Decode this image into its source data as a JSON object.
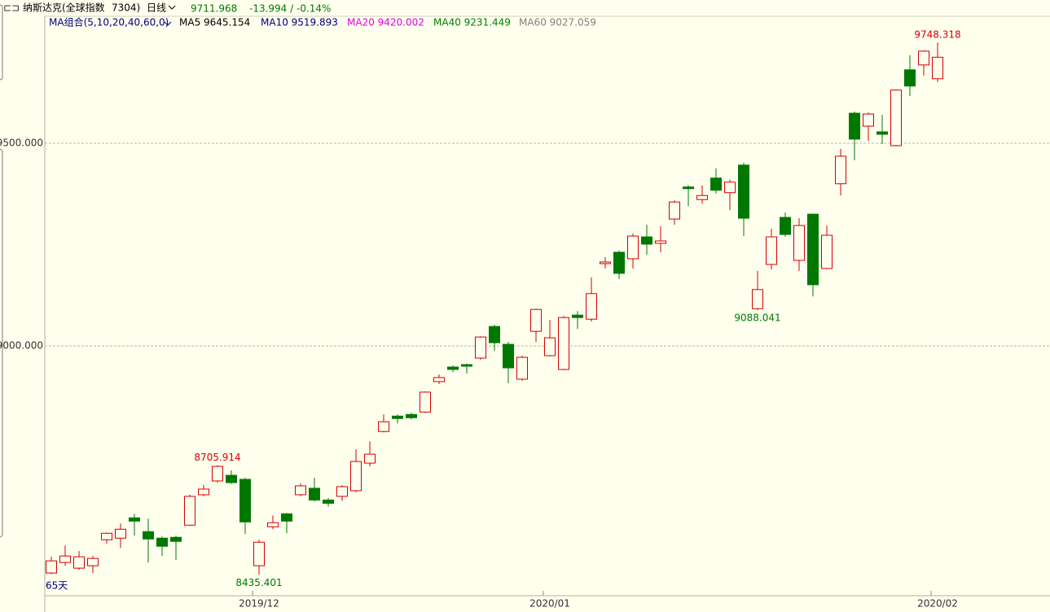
{
  "header": {
    "icon": "⊏⊐",
    "name": "纳斯达克(全球指数",
    "code": "7304)",
    "period": "日线",
    "price": "9711.968",
    "change": "-13.994 / -0.14%"
  },
  "ma_legend": {
    "group": "MA组合(5,10,20,40,60,0)",
    "items": [
      {
        "text": "MA5 9645.154",
        "color": "#000000"
      },
      {
        "text": "MA10 9519.893",
        "color": "#000080"
      },
      {
        "text": "MA20 9420.002",
        "color": "#e000e0"
      },
      {
        "text": "MA40 9231.449",
        "color": "#008000"
      },
      {
        "text": "MA60 9027.059",
        "color": "#808080"
      }
    ]
  },
  "period_label": "65天",
  "chart_data": {
    "type": "candlestick",
    "up_color": "#d40000",
    "down_color": "#007800",
    "categories": [
      null,
      null,
      null,
      null,
      null,
      null,
      null,
      null,
      null,
      null,
      null,
      null,
      null,
      null,
      null,
      "2019/12",
      null,
      null,
      null,
      null,
      null,
      null,
      null,
      null,
      null,
      null,
      null,
      null,
      null,
      null,
      null,
      null,
      null,
      null,
      null,
      null,
      "2020/01",
      null,
      null,
      null,
      null,
      null,
      null,
      null,
      null,
      null,
      null,
      null,
      null,
      null,
      null,
      null,
      null,
      null,
      null,
      null,
      null,
      null,
      null,
      null,
      null,
      null,
      null,
      null,
      "2020/02"
    ],
    "open": [
      8440,
      8466,
      8452,
      8458,
      8522,
      8526,
      8576,
      8542,
      8526,
      8528,
      8558,
      8633,
      8667,
      8681,
      8671,
      8458,
      8554,
      8586,
      8633,
      8649,
      8620,
      8629,
      8643,
      8711,
      8789,
      8827,
      8831,
      8837,
      8912,
      8948,
      8954,
      8970,
      9048,
      9004,
      8918,
      9036,
      8976,
      8942,
      9076,
      9066,
      9203,
      9231,
      9215,
      9269,
      9253,
      9313,
      9392,
      9361,
      9414,
      9378,
      9446,
      9092,
      9201,
      9317,
      9211,
      9325,
      9191,
      9400,
      9574,
      9542,
      9528,
      9494,
      9681,
      9693,
      9659
    ],
    "high": [
      8480,
      8508,
      8494,
      8482,
      8540,
      8562,
      8586,
      8574,
      8530,
      8532,
      8633,
      8657,
      8705.914,
      8693,
      8675,
      8522,
      8582,
      8588,
      8661,
      8675,
      8625,
      8657,
      8745,
      8765,
      8831,
      8831,
      8835,
      8888,
      8930,
      8952,
      8956,
      9024,
      9052,
      9010,
      8976,
      9092,
      9064,
      9074,
      9086,
      9169,
      9219,
      9235,
      9277,
      9299,
      9295,
      9359,
      9396,
      9396,
      9438,
      9410,
      9452,
      9185,
      9289,
      9329,
      9315,
      9325,
      9297,
      9486,
      9578,
      9576,
      9570,
      9633,
      9717,
      9729,
      9748.318
    ],
    "low": [
      8437,
      8458,
      8448,
      8440,
      8512,
      8502,
      8532,
      8466,
      8482,
      8472,
      8556,
      8629,
      8663,
      8660,
      8536,
      8435.401,
      8548,
      8538,
      8629,
      8616,
      8604,
      8618,
      8639,
      8703,
      8787,
      8809,
      8819,
      8835,
      8906,
      8936,
      8932,
      8966,
      8988,
      8908,
      8914,
      9010,
      8974,
      8940,
      9042,
      9060,
      9191,
      9165,
      9191,
      9225,
      9231,
      9299,
      9345,
      9351,
      9376,
      9335,
      9271,
      9088.041,
      9189,
      9269,
      9185,
      9122,
      9189,
      9371,
      9458,
      9506,
      9498,
      9492,
      9616,
      9667,
      9651
    ],
    "close": [
      8470,
      8482,
      8480,
      8476,
      8538,
      8548,
      8568,
      8524,
      8506,
      8518,
      8629,
      8647,
      8703,
      8663,
      8566,
      8516,
      8564,
      8568,
      8655,
      8620,
      8612,
      8653,
      8715,
      8733,
      8813,
      8821,
      8823,
      8886,
      8922,
      8942,
      8950,
      9022,
      9008,
      8946,
      8972,
      9090,
      9020,
      9070,
      9070,
      9129,
      9207,
      9179,
      9271,
      9251,
      9259,
      9355,
      9388,
      9371,
      9384,
      9404,
      9315,
      9139,
      9269,
      9275,
      9297,
      9151,
      9273,
      9468,
      9510,
      9572,
      9522,
      9631,
      9641,
      9727,
      9711.968
    ],
    "high_labels": [
      null,
      null,
      null,
      null,
      null,
      null,
      null,
      null,
      null,
      null,
      null,
      null,
      "8705.914",
      null,
      null,
      null,
      null,
      null,
      null,
      null,
      null,
      null,
      null,
      null,
      null,
      null,
      null,
      null,
      null,
      null,
      null,
      null,
      null,
      null,
      null,
      null,
      null,
      null,
      null,
      null,
      null,
      null,
      null,
      null,
      null,
      null,
      null,
      null,
      null,
      null,
      null,
      null,
      null,
      null,
      null,
      null,
      null,
      null,
      null,
      null,
      null,
      null,
      null,
      null,
      "9748.318"
    ],
    "low_labels": [
      null,
      null,
      null,
      null,
      null,
      null,
      null,
      null,
      null,
      null,
      null,
      null,
      null,
      null,
      null,
      "8435.401",
      null,
      null,
      null,
      null,
      null,
      null,
      null,
      null,
      null,
      null,
      null,
      null,
      null,
      null,
      null,
      null,
      null,
      null,
      null,
      null,
      null,
      null,
      null,
      null,
      null,
      null,
      null,
      null,
      null,
      null,
      null,
      null,
      null,
      null,
      null,
      "9088.041",
      null,
      null,
      null,
      null,
      null,
      null,
      null,
      null,
      null,
      null,
      null,
      null,
      null
    ],
    "ylim": [
      8384,
      9813
    ],
    "yticks": [
      {
        "value": 9000,
        "label": "9000.000"
      },
      {
        "value": 9500,
        "label": "9500.000"
      }
    ],
    "grid": true
  }
}
